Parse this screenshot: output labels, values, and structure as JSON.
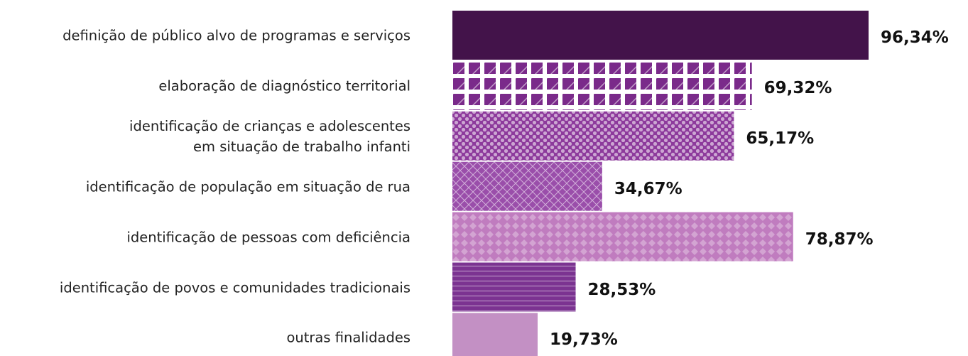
{
  "chart_data": {
    "type": "bar",
    "orientation": "horizontal",
    "categories": [
      "definição de público alvo de programas e serviços",
      "elaboração de diagnóstico territorial",
      "identificação de crianças e adolescentes\nem situação de trabalho infanti",
      "identificação de população em situação de rua",
      "identificação de pessoas com deficiência",
      "identificação de povos e comunidades tradicionais",
      "outras finalidades"
    ],
    "values": [
      96.34,
      69.32,
      65.17,
      34.67,
      78.87,
      28.53,
      19.73
    ],
    "value_labels": [
      "96,34%",
      "69,32%",
      "65,17%",
      "34,67%",
      "78,87%",
      "28,53%",
      "19,73%"
    ],
    "colors": [
      "#43134a",
      "#7a2a8a",
      "#8d3a9c",
      "#9a4eaa",
      "#c07cbf",
      "#7b3391",
      "#c390c4"
    ],
    "patterns": [
      "solid",
      "diagonal",
      "dots",
      "crosshatch",
      "diamonds",
      "horizontal",
      "solid"
    ]
  }
}
